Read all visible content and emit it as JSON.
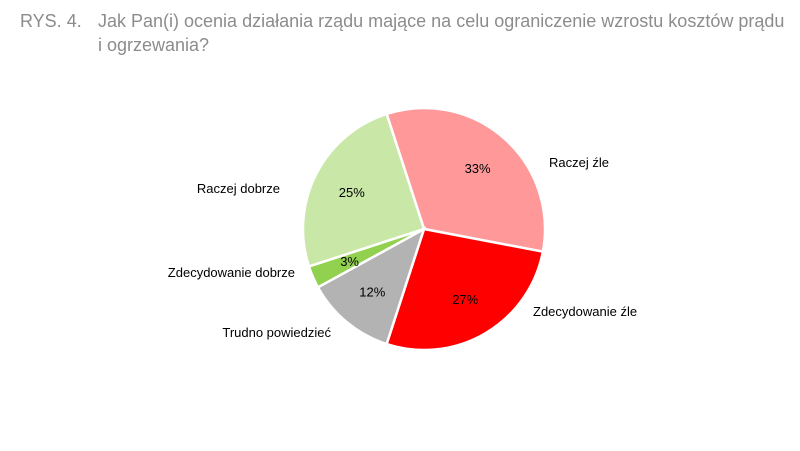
{
  "figure": {
    "label": "RYS. 4.",
    "title": "Jak Pan(i) ocenia działania rządu mające na celu ograniczenie wzrostu kosztów prądu i ogrzewania?"
  },
  "chart_data": {
    "type": "pie",
    "categories": [
      "Raczej źle",
      "Zdecydowanie źle",
      "Trudno powiedzieć",
      "Zdecydowanie dobrze",
      "Raczej dobrze"
    ],
    "values": [
      33,
      27,
      12,
      3,
      25
    ],
    "value_labels": [
      "33%",
      "27%",
      "12%",
      "3%",
      "25%"
    ],
    "colors": [
      "#ff9999",
      "#ff0000",
      "#b3b3b3",
      "#92d050",
      "#c9e7a7"
    ],
    "legend": "none"
  }
}
